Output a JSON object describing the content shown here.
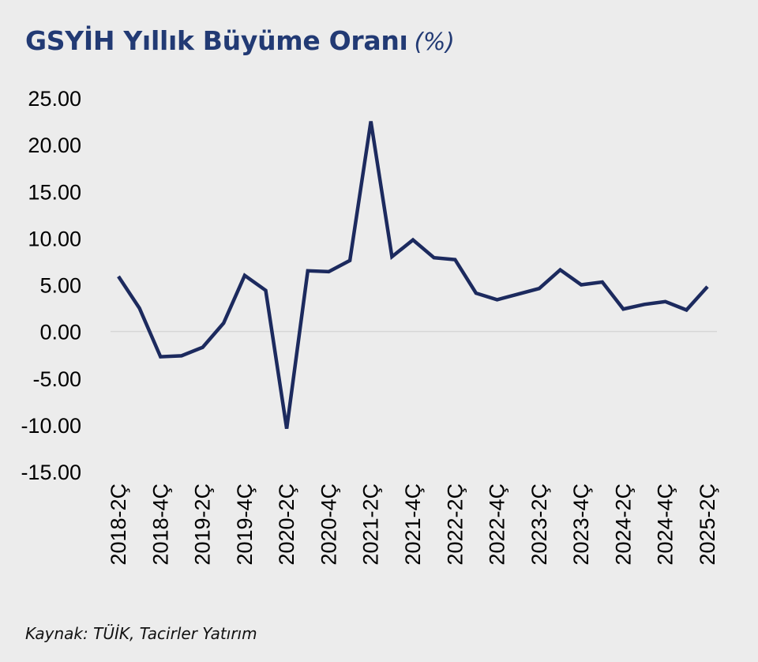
{
  "title": "GSYİH Yıllık Büyüme Oranı",
  "title_unit": "(%)",
  "source": "Kaynak: TÜİK, Tacirler Yatırım",
  "colors": {
    "background": "#ececec",
    "title": "#223a74",
    "line": "#1c2a5e",
    "zero_line": "#d6d6d6"
  },
  "chart_data": {
    "type": "line",
    "title": "GSYİH Yıllık Büyüme Oranı (%)",
    "xlabel": "",
    "ylabel": "",
    "ylim": [
      -15,
      25
    ],
    "y_ticks": [
      "25.00",
      "20.00",
      "15.00",
      "10.00",
      "5.00",
      "0.00",
      "-5.00",
      "-10.00",
      "-15.00"
    ],
    "grid": false,
    "legend": "none",
    "x": [
      "2018-2Ç",
      "2018-3Ç",
      "2018-4Ç",
      "2019-1Ç",
      "2019-2Ç",
      "2019-3Ç",
      "2019-4Ç",
      "2020-1Ç",
      "2020-2Ç",
      "2020-3Ç",
      "2020-4Ç",
      "2021-1Ç",
      "2021-2Ç",
      "2021-3Ç",
      "2021-4Ç",
      "2022-1Ç",
      "2022-2Ç",
      "2022-3Ç",
      "2022-4Ç",
      "2023-1Ç",
      "2023-2Ç",
      "2023-3Ç",
      "2023-4Ç",
      "2024-1Ç",
      "2024-2Ç",
      "2024-3Ç",
      "2024-4Ç",
      "2025-1Ç",
      "2025-2Ç"
    ],
    "x_tick_labels": [
      "2018-2Ç",
      "2018-4Ç",
      "2019-2Ç",
      "2019-4Ç",
      "2020-2Ç",
      "2020-4Ç",
      "2021-2Ç",
      "2021-4Ç",
      "2022-2Ç",
      "2022-4Ç",
      "2023-2Ç",
      "2023-4Ç",
      "2024-2Ç",
      "2024-4Ç",
      "2025-2Ç"
    ],
    "series": [
      {
        "values": [
          5.9,
          2.5,
          -2.7,
          -2.6,
          -1.7,
          0.9,
          6.0,
          4.4,
          -10.4,
          6.5,
          6.4,
          7.6,
          22.5,
          8.0,
          9.8,
          7.9,
          7.7,
          4.1,
          3.4,
          4.0,
          4.6,
          6.6,
          5.0,
          5.3,
          2.4,
          2.9,
          3.2,
          2.3,
          4.8
        ]
      }
    ]
  }
}
